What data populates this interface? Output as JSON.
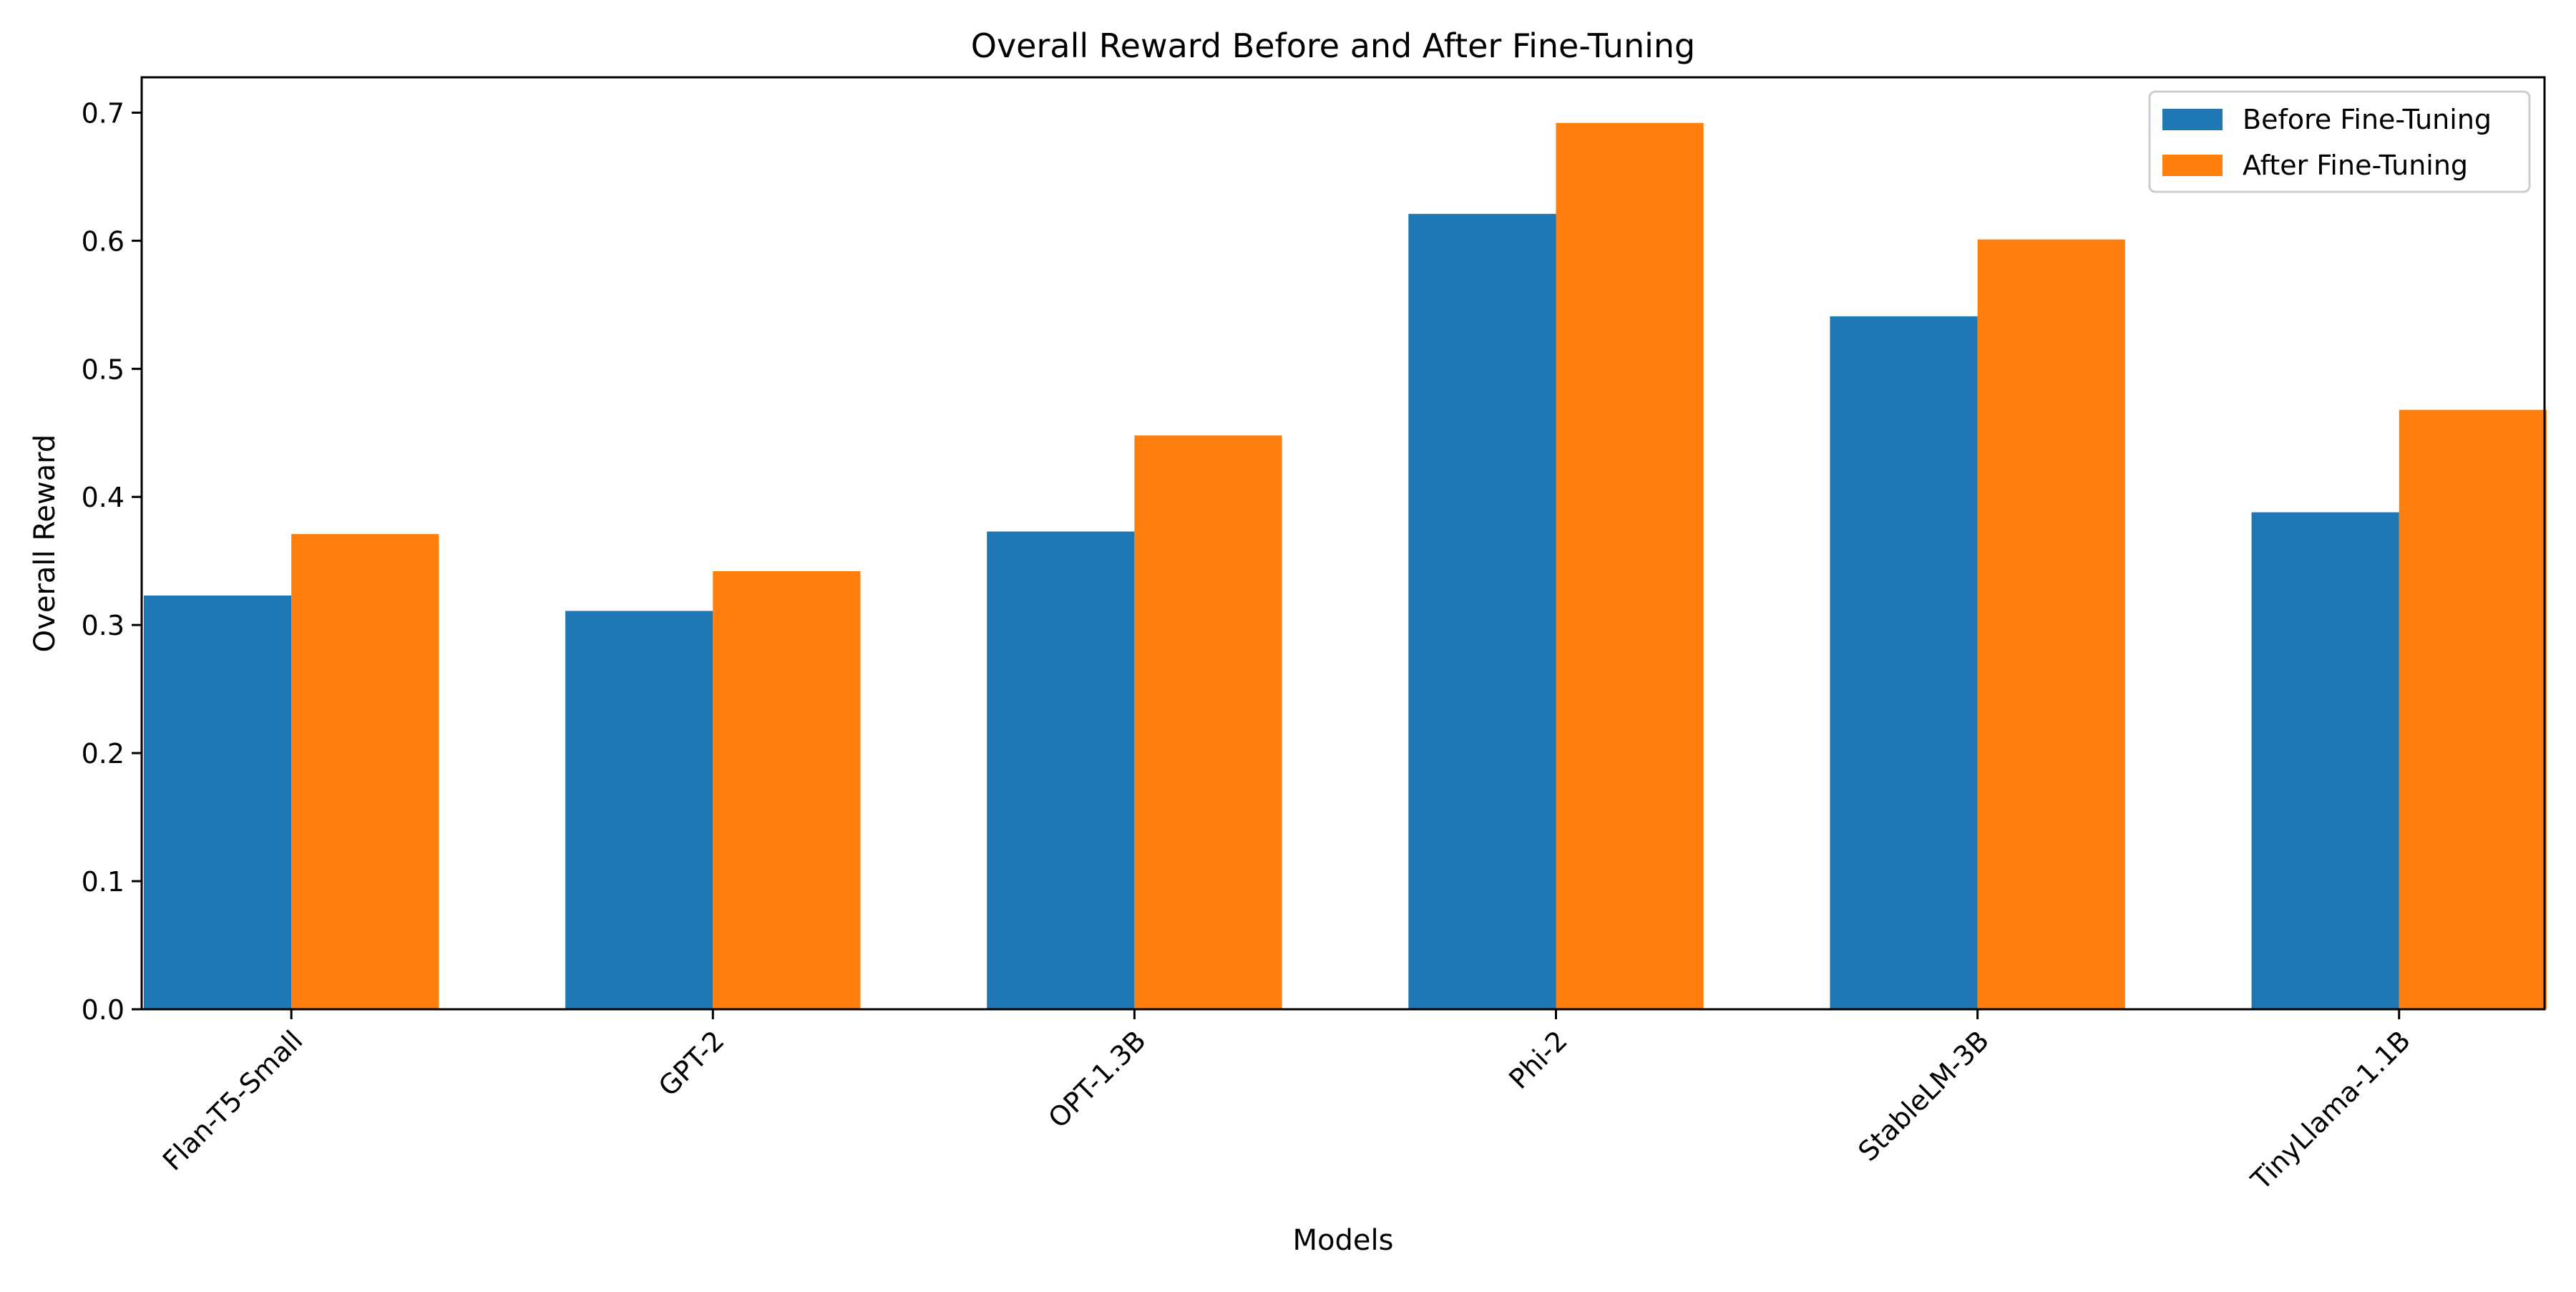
{
  "chart_data": {
    "type": "bar",
    "title": "Overall Reward Before and After Fine-Tuning",
    "xlabel": "Models",
    "ylabel": "Overall Reward",
    "categories": [
      "Flan-T5-Small",
      "GPT-2",
      "OPT-1.3B",
      "Phi-2",
      "StableLM-3B",
      "TinyLlama-1.1B"
    ],
    "series": [
      {
        "name": "Before Fine-Tuning",
        "color": "#1f77b4",
        "values": [
          0.323,
          0.311,
          0.373,
          0.621,
          0.541,
          0.388
        ]
      },
      {
        "name": "After Fine-Tuning",
        "color": "#ff7f0e",
        "values": [
          0.371,
          0.342,
          0.448,
          0.692,
          0.601,
          0.468
        ]
      }
    ],
    "ylim": [
      0,
      0.7276
    ],
    "yticks": [
      "0.0",
      "0.1",
      "0.2",
      "0.3",
      "0.4",
      "0.5",
      "0.6",
      "0.7"
    ],
    "grid": false,
    "legend_position": "top-right"
  }
}
